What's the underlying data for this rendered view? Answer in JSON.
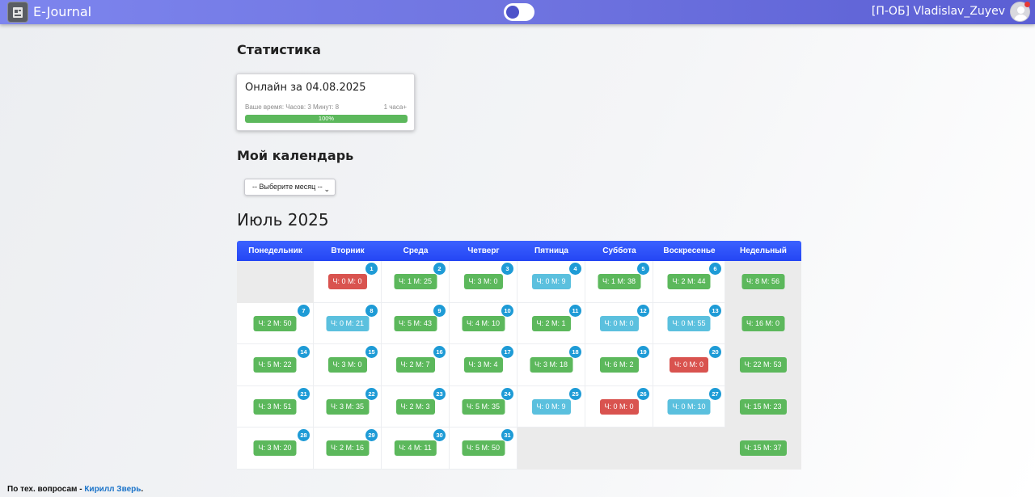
{
  "navbar": {
    "brand": "E-Journal",
    "user": "[П-ОБ] Vladislav_Zuyev",
    "logo_icon": "journal-logo-icon",
    "avatar_icon": "user-avatar-icon",
    "accent_color": "#6f74e0"
  },
  "stats": {
    "heading": "Статистика",
    "card_title": "Онлайн за 04.08.2025",
    "your_time": "Ваше время: Часов: 3 Минут: 8",
    "goal": "1 часа+",
    "progress_label": "100%",
    "progress_value": 100
  },
  "calendar": {
    "heading": "Мой календарь",
    "select_placeholder": "-- Выберите месяц --",
    "month_title": "Июль 2025",
    "columns": [
      "Понедельник",
      "Вторник",
      "Среда",
      "Четверг",
      "Пятница",
      "Суббота",
      "Воскресенье",
      "Недельный"
    ],
    "status_colors": {
      "green": "#5cb85c",
      "red": "#d9534f",
      "blue": "#5bc0de"
    },
    "weeks": [
      {
        "days": [
          null,
          {
            "day": "1",
            "label": "Ч: 0 М: 0",
            "color": "red"
          },
          {
            "day": "2",
            "label": "Ч: 1 М: 25",
            "color": "green"
          },
          {
            "day": "3",
            "label": "Ч: 3 М: 0",
            "color": "green"
          },
          {
            "day": "4",
            "label": "Ч: 0 М: 9",
            "color": "blue"
          },
          {
            "day": "5",
            "label": "Ч: 1 М: 38",
            "color": "green"
          },
          {
            "day": "6",
            "label": "Ч: 2 М: 44",
            "color": "green"
          }
        ],
        "weekly": "Ч: 8 М: 56"
      },
      {
        "days": [
          {
            "day": "7",
            "label": "Ч: 2 М: 50",
            "color": "green"
          },
          {
            "day": "8",
            "label": "Ч: 0 М: 21",
            "color": "blue"
          },
          {
            "day": "9",
            "label": "Ч: 5 М: 43",
            "color": "green"
          },
          {
            "day": "10",
            "label": "Ч: 4 М: 10",
            "color": "green"
          },
          {
            "day": "11",
            "label": "Ч: 2 М: 1",
            "color": "green"
          },
          {
            "day": "12",
            "label": "Ч: 0 М: 0",
            "color": "blue"
          },
          {
            "day": "13",
            "label": "Ч: 0 М: 55",
            "color": "blue"
          }
        ],
        "weekly": "Ч: 16 М: 0"
      },
      {
        "days": [
          {
            "day": "14",
            "label": "Ч: 5 М: 22",
            "color": "green"
          },
          {
            "day": "15",
            "label": "Ч: 3 М: 0",
            "color": "green"
          },
          {
            "day": "16",
            "label": "Ч: 2 М: 7",
            "color": "green"
          },
          {
            "day": "17",
            "label": "Ч: 3 М: 4",
            "color": "green"
          },
          {
            "day": "18",
            "label": "Ч: 3 М: 18",
            "color": "green"
          },
          {
            "day": "19",
            "label": "Ч: 6 М: 2",
            "color": "green"
          },
          {
            "day": "20",
            "label": "Ч: 0 М: 0",
            "color": "red"
          }
        ],
        "weekly": "Ч: 22 М: 53"
      },
      {
        "days": [
          {
            "day": "21",
            "label": "Ч: 3 М: 51",
            "color": "green"
          },
          {
            "day": "22",
            "label": "Ч: 3 М: 35",
            "color": "green"
          },
          {
            "day": "23",
            "label": "Ч: 2 М: 3",
            "color": "green"
          },
          {
            "day": "24",
            "label": "Ч: 5 М: 35",
            "color": "green"
          },
          {
            "day": "25",
            "label": "Ч: 0 М: 9",
            "color": "blue"
          },
          {
            "day": "26",
            "label": "Ч: 0 М: 0",
            "color": "red"
          },
          {
            "day": "27",
            "label": "Ч: 0 М: 10",
            "color": "blue"
          }
        ],
        "weekly": "Ч: 15 М: 23"
      },
      {
        "days": [
          {
            "day": "28",
            "label": "Ч: 3 М: 20",
            "color": "green"
          },
          {
            "day": "29",
            "label": "Ч: 2 М: 16",
            "color": "green"
          },
          {
            "day": "30",
            "label": "Ч: 4 М: 11",
            "color": "green"
          },
          {
            "day": "31",
            "label": "Ч: 5 М: 50",
            "color": "green"
          },
          null,
          null,
          null
        ],
        "weekly": "Ч: 15 М: 37"
      }
    ]
  },
  "footer": {
    "text": "По тех. вопросам - ",
    "link": "Кирилл Зверь",
    "suffix": "."
  }
}
